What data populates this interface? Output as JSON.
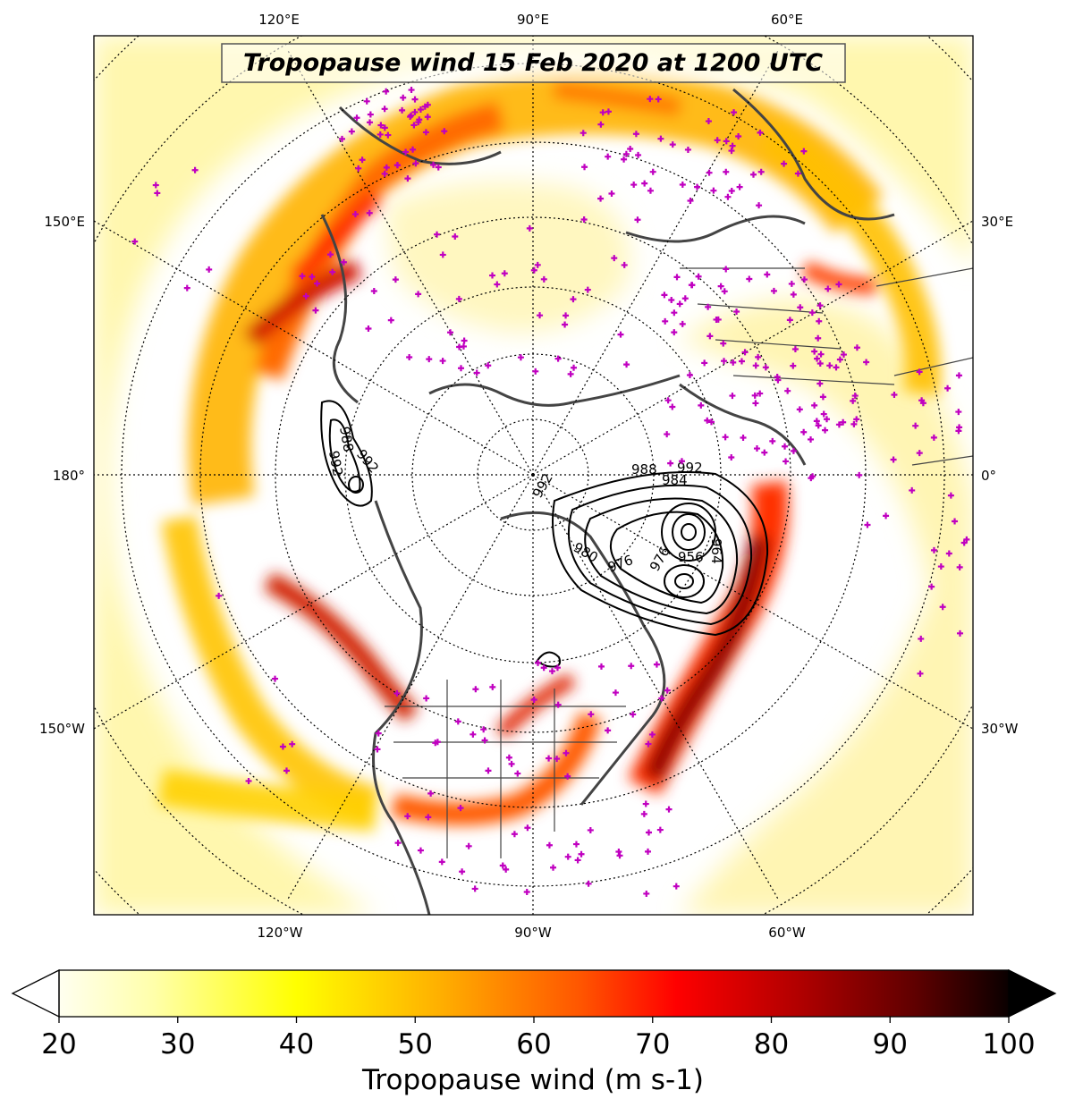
{
  "title": "Tropopause wind 15 Feb 2020 at 1200 UTC",
  "longitude_labels": {
    "top": [
      "120°E",
      "90°E",
      "60°E"
    ],
    "left": [
      "150°E",
      "180°",
      "150°W"
    ],
    "right": [
      "30°E",
      "0°",
      "30°W"
    ],
    "bottom": [
      "120°W",
      "90°W",
      "60°W"
    ]
  },
  "colorbar": {
    "label": "Tropopause wind (m s-1)",
    "min": 20,
    "max": 100,
    "ticks": [
      "20",
      "30",
      "40",
      "50",
      "60",
      "70",
      "80",
      "90",
      "100"
    ],
    "extend": "both",
    "colormap": "hot_r"
  },
  "contour_labels": [
    "992",
    "988",
    "992",
    "988",
    "992",
    "984",
    "980",
    "976",
    "964",
    "976",
    "956",
    "992"
  ],
  "colors": {
    "station_marker": "#c000c0",
    "coastline": "#444444",
    "contour": "#000000"
  },
  "legend_position": "bottom"
}
